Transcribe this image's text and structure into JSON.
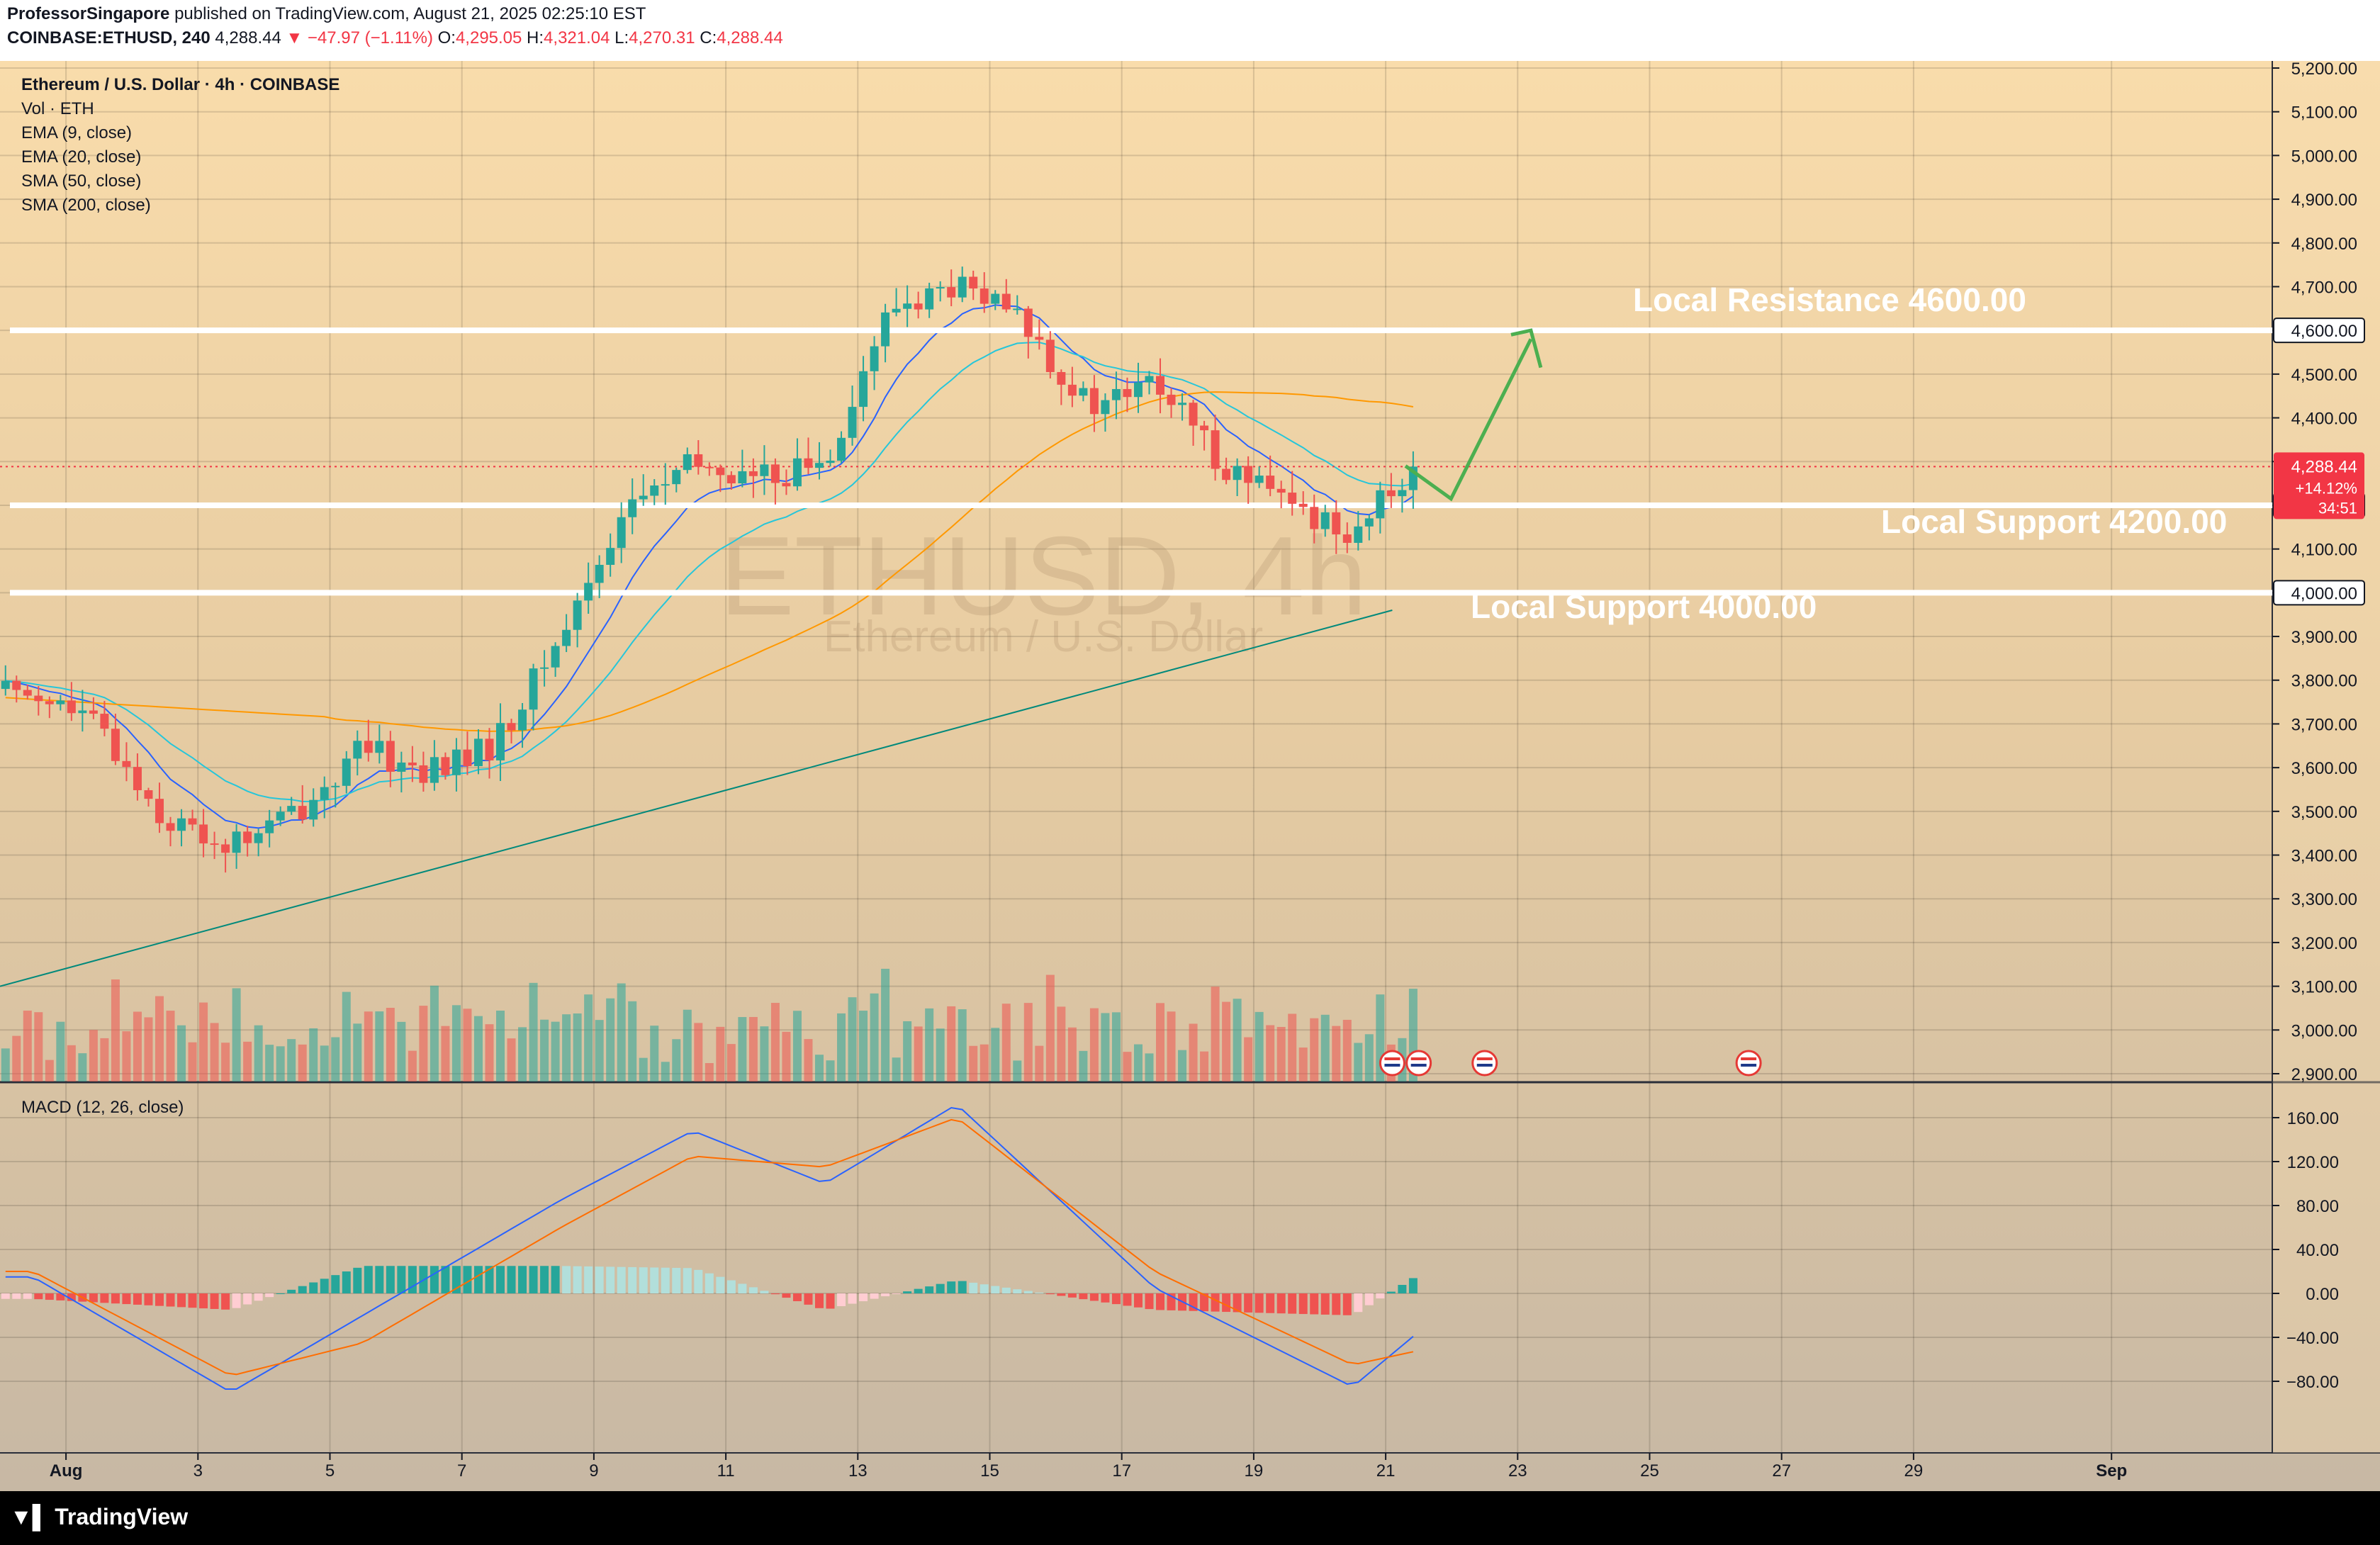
{
  "header": {
    "author": "ProfessorSingapore",
    "published_text": "published on TradingView.com, August 21, 2025 02:25:10 EST",
    "symbol": "COINBASE:ETHUSD, 240",
    "last": "4,288.44",
    "change": "▼ −47.97 (−1.11%)",
    "o_label": "O:",
    "o": "4,295.05",
    "h_label": "H:",
    "h": "4,321.04",
    "l_label": "L:",
    "l": "4,270.31",
    "c_label": "C:",
    "c": "4,288.44"
  },
  "legend": {
    "title": "Ethereum / U.S. Dollar · 4h · COINBASE",
    "items": [
      "Vol · ETH",
      "EMA (9, close)",
      "EMA (20, close)",
      "SMA (50, close)",
      "SMA (200, close)"
    ]
  },
  "watermark": {
    "symbol": "ETHUSD, 4h",
    "name": "Ethereum / U.S. Dollar"
  },
  "annotations": {
    "resistance": "Local Resistance 4600.00",
    "support1": "Local Support 4200.00",
    "support2": "Local Support 4000.00"
  },
  "price_axis": {
    "ticks": [
      "5,200.00",
      "5,100.00",
      "5,000.00",
      "4,900.00",
      "4,800.00",
      "4,700.00",
      "4,600.00",
      "4,500.00",
      "4,400.00",
      "4,300.00",
      "4,200.00",
      "4,100.00",
      "4,000.00",
      "3,900.00",
      "3,800.00",
      "3,700.00",
      "3,600.00",
      "3,500.00",
      "3,400.00",
      "3,300.00",
      "3,200.00",
      "3,100.00",
      "3,000.00",
      "2,900.00"
    ],
    "tick_values": [
      5200,
      5100,
      5000,
      4900,
      4800,
      4700,
      4600,
      4500,
      4400,
      4300,
      4200,
      4100,
      4000,
      3900,
      3800,
      3700,
      3600,
      3500,
      3400,
      3300,
      3200,
      3100,
      3000,
      2900
    ],
    "current_price_label": "4,288.44",
    "current_change_label": "+14.12%",
    "countdown_label": "34:51",
    "level_labels": [
      "4,600.00",
      "4,200.00",
      "4,000.00"
    ],
    "level_values": [
      4600,
      4200,
      4000
    ]
  },
  "macd": {
    "title": "MACD (12, 26, close)",
    "ticks": [
      "160.00",
      "120.00",
      "80.00",
      "40.00",
      "0.00",
      "−40.00",
      "−80.00"
    ],
    "tick_values": [
      160,
      120,
      80,
      40,
      0,
      -40,
      -80
    ]
  },
  "time_axis": {
    "labels": [
      "Aug",
      "3",
      "5",
      "7",
      "9",
      "11",
      "13",
      "15",
      "17",
      "19",
      "21",
      "23",
      "25",
      "27",
      "29",
      "Sep"
    ],
    "days": [
      1,
      3,
      5,
      7,
      9,
      11,
      13,
      15,
      17,
      19,
      21,
      23,
      25,
      27,
      29,
      32
    ]
  },
  "footer": {
    "brand": "TradingView"
  },
  "colors": {
    "up": "#26a69a",
    "down": "#ef5350",
    "ema9": "#2962ff",
    "ema20": "#26c6da",
    "sma50": "#ff9800",
    "sma200": "#00897b",
    "macd": "#2962ff",
    "signal": "#ff6d00",
    "arrow": "#4caf50",
    "level_line": "#ffffff",
    "price_badge": "#f23645"
  },
  "chart_data": {
    "type": "candlestick",
    "timeframe": "4h",
    "date_range": [
      "2025-07-31",
      "2025-08-21"
    ],
    "y_range": [
      2860,
      5220
    ],
    "macd_range": [
      -100,
      175
    ],
    "key_levels": [
      4600,
      4200,
      4000
    ],
    "ohlc_anchors": [
      {
        "date": "2025-07-31",
        "close": 3780
      },
      {
        "date": "2025-08-01",
        "close": 3690
      },
      {
        "date": "2025-08-02",
        "close": 3480
      },
      {
        "date": "2025-08-03",
        "close": 3420
      },
      {
        "date": "2025-08-04",
        "close": 3500
      },
      {
        "date": "2025-08-05",
        "close": 3640
      },
      {
        "date": "2025-08-06",
        "close": 3590
      },
      {
        "date": "2025-08-07",
        "close": 3650
      },
      {
        "date": "2025-08-08",
        "close": 3900
      },
      {
        "date": "2025-08-09",
        "close": 4200
      },
      {
        "date": "2025-08-10",
        "close": 4290
      },
      {
        "date": "2025-08-11",
        "close": 4260
      },
      {
        "date": "2025-08-12",
        "close": 4300
      },
      {
        "date": "2025-08-13",
        "close": 4650
      },
      {
        "date": "2025-08-14",
        "close": 4700
      },
      {
        "date": "2025-08-15",
        "close": 4620
      },
      {
        "date": "2025-08-16",
        "close": 4420
      },
      {
        "date": "2025-08-17",
        "close": 4480
      },
      {
        "date": "2025-08-18",
        "close": 4300
      },
      {
        "date": "2025-08-19",
        "close": 4200
      },
      {
        "date": "2025-08-20",
        "close": 4140
      },
      {
        "date": "2025-08-21",
        "close": 4288.44
      }
    ],
    "sma200_anchors": [
      {
        "date": "2025-07-31",
        "value": 3100
      },
      {
        "date": "2025-08-21",
        "value": 3960
      }
    ],
    "macd_anchors": [
      {
        "date": "2025-07-31",
        "macd": 15,
        "signal": 20
      },
      {
        "date": "2025-08-03",
        "macd": -90,
        "signal": -75
      },
      {
        "date": "2025-08-05",
        "macd": -20,
        "signal": -45
      },
      {
        "date": "2025-08-08",
        "macd": 85,
        "signal": 60
      },
      {
        "date": "2025-08-10",
        "macd": 148,
        "signal": 125
      },
      {
        "date": "2025-08-12",
        "macd": 100,
        "signal": 115
      },
      {
        "date": "2025-08-14",
        "macd": 172,
        "signal": 160
      },
      {
        "date": "2025-08-17",
        "macd": 5,
        "signal": 20
      },
      {
        "date": "2025-08-20",
        "macd": -85,
        "signal": -65
      },
      {
        "date": "2025-08-21",
        "macd": -35,
        "signal": -52
      }
    ]
  }
}
